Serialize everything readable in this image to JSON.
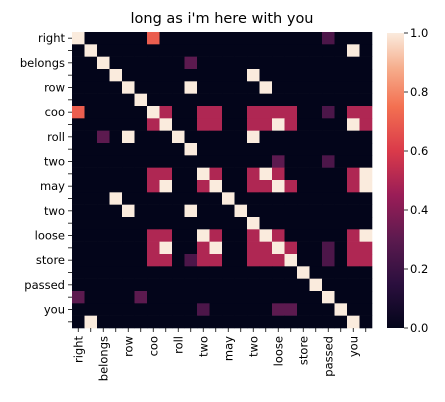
{
  "chart_data": {
    "type": "heatmap",
    "title": "long as i'm here with you",
    "xlabel": "",
    "ylabel": "",
    "labels": [
      "right",
      "",
      "belongs",
      "",
      "row",
      "",
      "coo",
      "",
      "roll",
      "",
      "two",
      "",
      "may",
      "",
      "two",
      "",
      "loose",
      "",
      "store",
      "",
      "passed",
      "",
      "you",
      ""
    ],
    "grid": false,
    "vmin": 0,
    "vmax": 1,
    "colorbar_ticks": [
      0.0,
      0.2,
      0.4,
      0.6,
      0.8,
      1.0
    ],
    "colorbar_tick_labels": [
      "0.0",
      "0.2",
      "0.4",
      "0.6",
      "0.8",
      "1.0"
    ],
    "colorbar_position": "right",
    "matrix": [
      [
        1,
        0,
        0,
        0,
        0,
        0,
        0.7,
        0,
        0,
        0,
        0,
        0,
        0,
        0,
        0,
        0,
        0,
        0,
        0,
        0,
        0.25,
        0,
        0,
        0
      ],
      [
        0,
        1,
        0,
        0,
        0,
        0,
        0,
        0,
        0,
        0,
        0,
        0,
        0,
        0,
        0,
        0,
        0,
        0,
        0,
        0,
        0,
        0,
        1,
        0
      ],
      [
        0,
        0,
        1,
        0,
        0,
        0,
        0,
        0,
        0,
        0.3,
        0,
        0,
        0,
        0,
        0,
        0,
        0,
        0,
        0,
        0,
        0,
        0,
        0,
        0
      ],
      [
        0,
        0,
        0,
        1,
        0,
        0,
        0,
        0,
        0,
        0,
        0,
        0,
        0,
        0,
        1,
        0,
        0,
        0,
        0,
        0,
        0,
        0,
        0,
        0
      ],
      [
        0,
        0,
        0,
        0,
        1,
        0,
        0,
        0,
        0,
        1,
        0,
        0,
        0,
        0,
        0,
        1,
        0,
        0,
        0,
        0,
        0,
        0,
        0,
        0
      ],
      [
        0,
        0,
        0,
        0,
        0,
        1,
        0,
        0,
        0,
        0,
        0,
        0,
        0,
        0,
        0,
        0,
        0,
        0,
        0,
        0,
        0,
        0,
        0,
        0
      ],
      [
        0.7,
        0,
        0,
        0,
        0,
        0,
        1,
        0.5,
        0,
        0,
        0.5,
        0.5,
        0,
        0,
        0.5,
        0.5,
        0.5,
        0.5,
        0,
        0,
        0.25,
        0,
        0.5,
        0.5
      ],
      [
        0,
        0,
        0,
        0,
        0,
        0,
        0.5,
        1,
        0,
        0,
        0.5,
        0.5,
        0,
        0,
        0.5,
        0.5,
        1,
        0.5,
        0,
        0,
        0,
        0,
        1,
        0.5
      ],
      [
        0,
        0,
        0.3,
        0,
        1,
        0,
        0,
        0,
        1,
        0,
        0,
        0,
        0,
        0,
        1,
        0,
        0,
        0,
        0,
        0,
        0,
        0,
        0,
        0
      ],
      [
        0,
        0,
        0,
        0,
        0,
        0,
        0,
        0,
        0,
        1,
        0,
        0,
        0,
        0,
        0,
        0,
        0,
        0,
        0,
        0,
        0,
        0,
        0,
        0
      ],
      [
        0,
        0,
        0,
        0,
        0,
        0,
        0,
        0,
        0,
        0,
        0,
        0,
        0,
        0,
        0,
        0,
        0.3,
        0,
        0,
        0,
        0.25,
        0,
        0,
        0
      ],
      [
        0,
        0,
        0,
        0,
        0,
        0,
        0.5,
        0.5,
        0,
        0,
        1,
        0.5,
        0,
        0,
        0.5,
        1,
        0.5,
        0,
        0,
        0,
        0,
        0,
        0.5,
        1
      ],
      [
        0,
        0,
        0,
        0,
        0,
        0,
        0.5,
        1,
        0,
        0,
        0.5,
        1,
        0,
        0,
        0.5,
        0.5,
        1,
        0.5,
        0,
        0,
        0,
        0,
        0.5,
        1
      ],
      [
        0,
        0,
        0,
        1,
        0,
        0,
        0,
        0,
        0,
        0,
        0,
        0,
        1,
        0,
        0,
        0,
        0,
        0,
        0,
        0,
        0,
        0,
        0,
        0
      ],
      [
        0,
        0,
        0,
        0,
        1,
        0,
        0,
        0,
        0,
        1,
        0,
        0,
        0,
        1,
        0,
        0,
        0,
        0,
        0,
        0,
        0,
        0,
        0,
        0
      ],
      [
        0,
        0,
        0,
        0,
        0,
        0,
        0,
        0,
        0,
        0,
        0,
        0,
        0,
        0,
        1,
        0,
        0,
        0,
        0,
        0,
        0,
        0,
        0,
        0
      ],
      [
        0,
        0,
        0,
        0,
        0,
        0,
        0.5,
        0.5,
        0,
        0,
        1,
        0.5,
        0,
        0,
        0.5,
        1,
        0.5,
        0,
        0,
        0,
        0,
        0,
        0.5,
        1
      ],
      [
        0,
        0,
        0,
        0,
        0,
        0,
        0.5,
        1,
        0,
        0,
        0.5,
        1,
        0,
        0,
        0.5,
        0.5,
        1,
        0.5,
        0,
        0,
        0.25,
        0,
        0.5,
        0.5
      ],
      [
        0,
        0,
        0,
        0,
        0,
        0,
        0.5,
        0.5,
        0,
        0.25,
        0.5,
        0.5,
        0,
        0,
        0.5,
        0.5,
        0.5,
        1,
        0,
        0,
        0.25,
        0,
        0.5,
        0.5
      ],
      [
        0,
        0,
        0,
        0,
        0,
        0,
        0,
        0,
        0,
        0,
        0,
        0,
        0,
        0,
        0,
        0,
        0,
        0,
        1,
        0,
        0,
        0,
        0,
        0
      ],
      [
        0,
        0,
        0,
        0,
        0,
        0,
        0,
        0,
        0,
        0,
        0,
        0,
        0,
        0,
        0,
        0,
        0,
        0,
        0,
        1,
        0,
        0,
        0,
        0
      ],
      [
        0.3,
        0,
        0,
        0,
        0,
        0.3,
        0,
        0,
        0,
        0,
        0,
        0,
        0,
        0,
        0,
        0,
        0,
        0,
        0,
        0,
        1,
        0,
        0,
        0
      ],
      [
        0,
        0,
        0,
        0,
        0,
        0,
        0,
        0,
        0,
        0,
        0.25,
        0,
        0,
        0,
        0,
        0,
        0.3,
        0.3,
        0,
        0,
        0,
        1,
        0,
        0
      ],
      [
        0,
        1,
        0,
        0,
        0,
        0,
        0,
        0,
        0,
        0,
        0,
        0,
        0,
        0,
        0,
        0,
        0,
        0,
        0,
        0,
        0,
        0,
        1,
        0
      ]
    ]
  }
}
